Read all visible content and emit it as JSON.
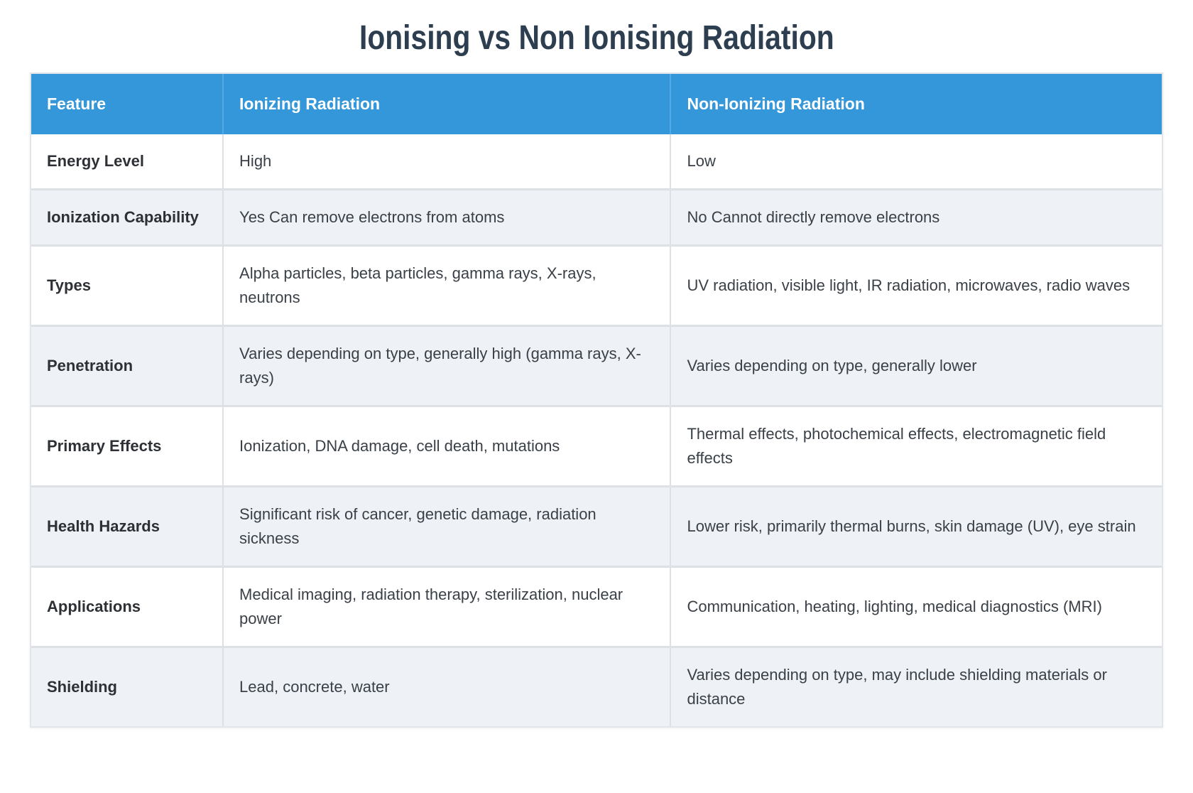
{
  "title": "Ionising vs Non Ionising Radiation",
  "colors": {
    "header_background": "#3497da",
    "header_text": "#ffffff",
    "header_divider": "#55a8e1",
    "title_text": "#2c3e50",
    "row_stripe": "#eef2f7",
    "cell_border": "#dde1e6",
    "body_text": "#3a4047"
  },
  "table": {
    "headers": [
      "Feature",
      "Ionizing Radiation",
      "Non-Ionizing Radiation"
    ],
    "rows": [
      {
        "feature": "Energy Level",
        "ionizing": "High",
        "non_ionizing": "Low"
      },
      {
        "feature": "Ionization Capability",
        "ionizing": "Yes Can remove electrons from atoms",
        "non_ionizing": "No Cannot directly remove electrons"
      },
      {
        "feature": "Types",
        "ionizing": "Alpha particles, beta particles, gamma rays, X-rays, neutrons",
        "non_ionizing": "UV radiation, visible light, IR radiation, microwaves, radio waves"
      },
      {
        "feature": "Penetration",
        "ionizing": "Varies depending on type, generally high (gamma rays, X-rays)",
        "non_ionizing": "Varies depending on type, generally lower"
      },
      {
        "feature": "Primary Effects",
        "ionizing": "Ionization, DNA damage, cell death, mutations",
        "non_ionizing": "Thermal effects, photochemical effects, electromagnetic field effects"
      },
      {
        "feature": "Health Hazards",
        "ionizing": "Significant risk of cancer, genetic damage, radiation sickness",
        "non_ionizing": "Lower risk, primarily thermal burns, skin damage (UV), eye strain"
      },
      {
        "feature": "Applications",
        "ionizing": "Medical imaging, radiation therapy, sterilization, nuclear power",
        "non_ionizing": "Communication, heating, lighting, medical diagnostics (MRI)"
      },
      {
        "feature": "Shielding",
        "ionizing": "Lead, concrete, water",
        "non_ionizing": "Varies depending on type, may include shielding materials or distance"
      }
    ]
  },
  "chart_data": {
    "type": "table",
    "title": "Ionising vs Non Ionising Radiation",
    "columns": [
      "Feature",
      "Ionizing Radiation",
      "Non-Ionizing Radiation"
    ],
    "rows": [
      [
        "Energy Level",
        "High",
        "Low"
      ],
      [
        "Ionization Capability",
        "Yes Can remove electrons from atoms",
        "No Cannot directly remove electrons"
      ],
      [
        "Types",
        "Alpha particles, beta particles, gamma rays, X-rays, neutrons",
        "UV radiation, visible light, IR radiation, microwaves, radio waves"
      ],
      [
        "Penetration",
        "Varies depending on type, generally high (gamma rays, X-rays)",
        "Varies depending on type, generally lower"
      ],
      [
        "Primary Effects",
        "Ionization, DNA damage, cell death, mutations",
        "Thermal effects, photochemical effects, electromagnetic field effects"
      ],
      [
        "Health Hazards",
        "Significant risk of cancer, genetic damage, radiation sickness",
        "Lower risk, primarily thermal burns, skin damage (UV), eye strain"
      ],
      [
        "Applications",
        "Medical imaging, radiation therapy, sterilization, nuclear power",
        "Communication, heating, lighting, medical diagnostics (MRI)"
      ],
      [
        "Shielding",
        "Lead, concrete, water",
        "Varies depending on type, may include shielding materials or distance"
      ]
    ],
    "layout": {
      "header_fill": "#3497da",
      "striped_rows": true,
      "stripe_fill": "#eef2f7",
      "grid": true
    }
  }
}
